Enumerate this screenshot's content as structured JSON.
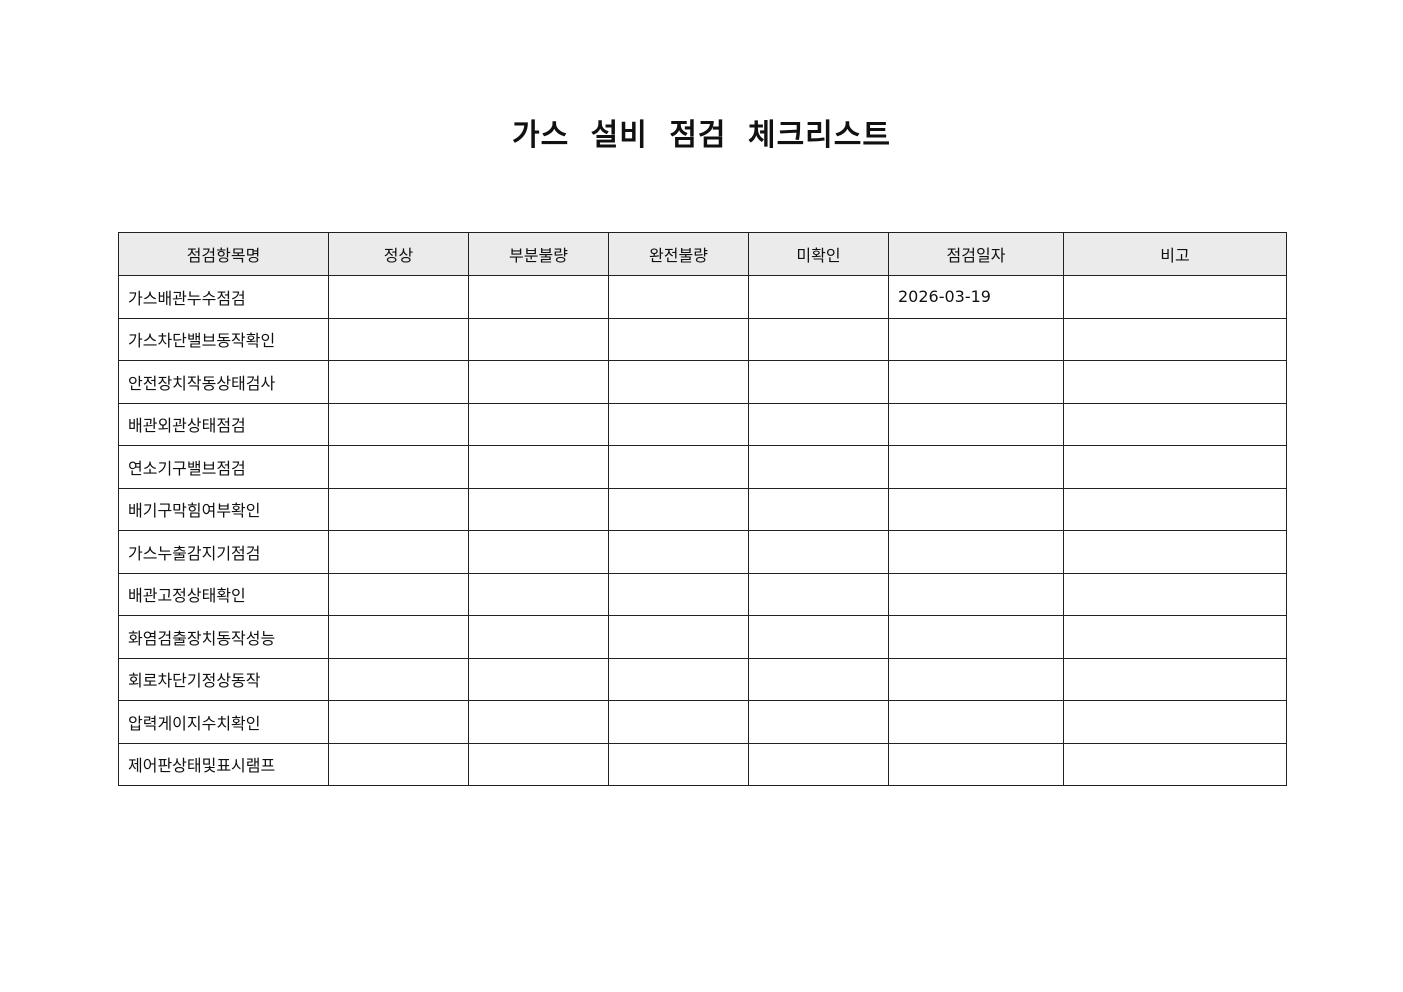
{
  "title": "가스 설비 점검 체크리스트",
  "table": {
    "headers": [
      "점검항목명",
      "정상",
      "부분불량",
      "완전불량",
      "미확인",
      "점검일자",
      "비고"
    ],
    "rows": [
      [
        "가스배관누수점검",
        "",
        "",
        "",
        "",
        "2026-03-19",
        ""
      ],
      [
        "가스차단밸브동작확인",
        "",
        "",
        "",
        "",
        "",
        ""
      ],
      [
        "안전장치작동상태검사",
        "",
        "",
        "",
        "",
        "",
        ""
      ],
      [
        "배관외관상태점검",
        "",
        "",
        "",
        "",
        "",
        ""
      ],
      [
        "연소기구밸브점검",
        "",
        "",
        "",
        "",
        "",
        ""
      ],
      [
        "배기구막힘여부확인",
        "",
        "",
        "",
        "",
        "",
        ""
      ],
      [
        "가스누출감지기점검",
        "",
        "",
        "",
        "",
        "",
        ""
      ],
      [
        "배관고정상태확인",
        "",
        "",
        "",
        "",
        "",
        ""
      ],
      [
        "화염검출장치동작성능",
        "",
        "",
        "",
        "",
        "",
        ""
      ],
      [
        "회로차단기정상동작",
        "",
        "",
        "",
        "",
        "",
        ""
      ],
      [
        "압력게이지수치확인",
        "",
        "",
        "",
        "",
        "",
        ""
      ],
      [
        "제어판상태및표시램프",
        "",
        "",
        "",
        "",
        "",
        ""
      ]
    ]
  }
}
